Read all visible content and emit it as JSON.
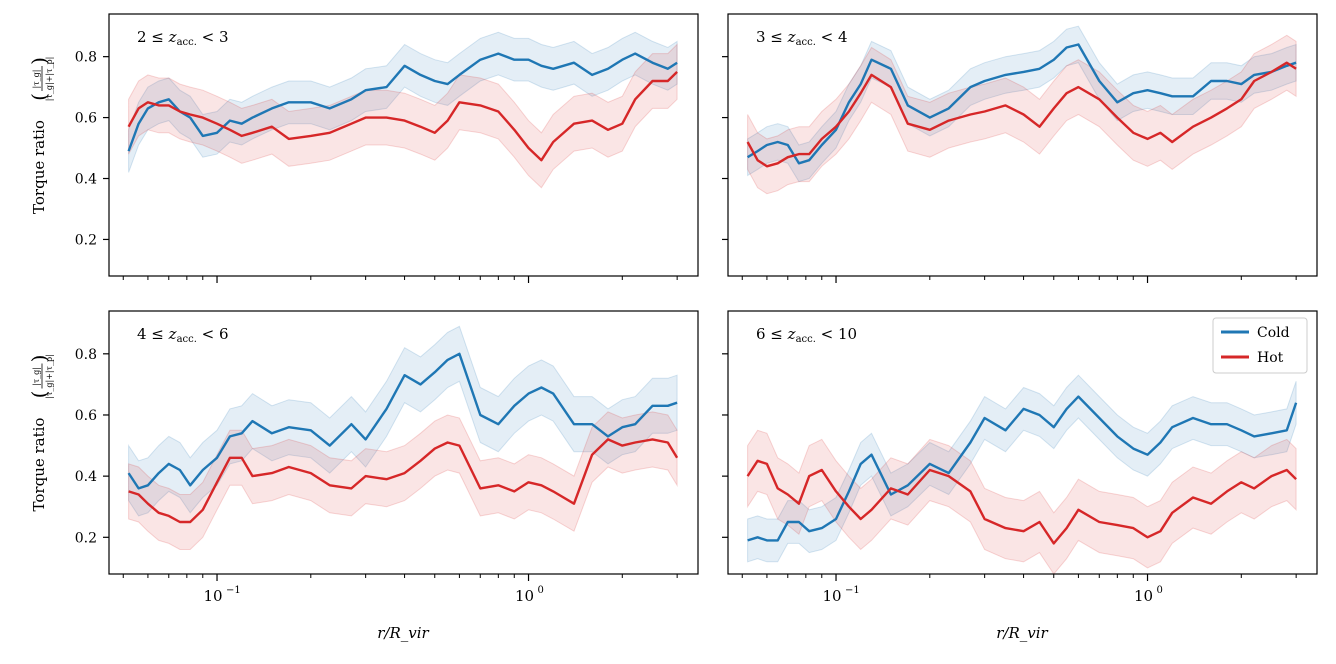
{
  "figure": {
    "xlabel": "r/R_vir",
    "ylabel_prefix": "Torque ratio",
    "ylabel_fraction_num": "|τ_g|",
    "ylabel_fraction_den": "|τ_g|+|τ_p|",
    "colors": {
      "cold": "#1f77b4",
      "hot": "#d62728"
    }
  },
  "legend": {
    "entries": [
      {
        "name": "Cold",
        "color": "#1f77b4"
      },
      {
        "name": "Hot",
        "color": "#d62728"
      }
    ],
    "placement": "upper-right of bottom-right panel"
  },
  "chart_data": [
    {
      "type": "line",
      "title": "2 ≤ z_acc. < 3",
      "label_main": "2 ≤ ",
      "label_z": "z",
      "label_sub": "acc.",
      "label_tail": " < 3",
      "xscale": "log",
      "xlim": [
        0.045,
        3.5
      ],
      "ylim": [
        0.08,
        0.94
      ],
      "yticks": [
        0.2,
        0.4,
        0.6,
        0.8
      ],
      "ytick_labels": [
        "0.2",
        "0.4",
        "0.6",
        "0.8"
      ],
      "x": [
        0.052,
        0.056,
        0.06,
        0.065,
        0.07,
        0.076,
        0.082,
        0.09,
        0.1,
        0.11,
        0.12,
        0.13,
        0.15,
        0.17,
        0.2,
        0.23,
        0.27,
        0.3,
        0.35,
        0.4,
        0.45,
        0.5,
        0.55,
        0.6,
        0.7,
        0.8,
        0.9,
        1.0,
        1.1,
        1.2,
        1.4,
        1.6,
        1.8,
        2.0,
        2.2,
        2.5,
        2.8,
        3.0
      ],
      "series": [
        {
          "name": "Cold",
          "values": [
            0.49,
            0.58,
            0.63,
            0.65,
            0.66,
            0.62,
            0.6,
            0.54,
            0.55,
            0.59,
            0.58,
            0.6,
            0.63,
            0.65,
            0.65,
            0.63,
            0.66,
            0.69,
            0.7,
            0.77,
            0.74,
            0.72,
            0.71,
            0.74,
            0.79,
            0.81,
            0.79,
            0.79,
            0.77,
            0.76,
            0.78,
            0.74,
            0.76,
            0.79,
            0.81,
            0.78,
            0.76,
            0.78
          ],
          "band": 0.07
        },
        {
          "name": "Hot",
          "values": [
            0.57,
            0.63,
            0.65,
            0.64,
            0.64,
            0.62,
            0.61,
            0.6,
            0.58,
            0.56,
            0.54,
            0.55,
            0.57,
            0.53,
            0.54,
            0.55,
            0.58,
            0.6,
            0.6,
            0.59,
            0.57,
            0.55,
            0.59,
            0.65,
            0.64,
            0.62,
            0.56,
            0.5,
            0.46,
            0.52,
            0.58,
            0.59,
            0.56,
            0.58,
            0.66,
            0.72,
            0.72,
            0.75
          ],
          "band": 0.09
        }
      ]
    },
    {
      "type": "line",
      "title": "3 ≤ z_acc. < 4",
      "label_main": "3 ≤ ",
      "label_z": "z",
      "label_sub": "acc.",
      "label_tail": " < 4",
      "xscale": "log",
      "xlim": [
        0.045,
        3.5
      ],
      "ylim": [
        0.08,
        0.94
      ],
      "yticks": [
        0.2,
        0.4,
        0.6,
        0.8
      ],
      "ytick_labels": [
        "",
        "",
        "",
        ""
      ],
      "x": [
        0.052,
        0.056,
        0.06,
        0.065,
        0.07,
        0.076,
        0.082,
        0.09,
        0.1,
        0.11,
        0.12,
        0.13,
        0.15,
        0.17,
        0.2,
        0.23,
        0.27,
        0.3,
        0.35,
        0.4,
        0.45,
        0.5,
        0.55,
        0.6,
        0.7,
        0.8,
        0.9,
        1.0,
        1.1,
        1.2,
        1.4,
        1.6,
        1.8,
        2.0,
        2.2,
        2.5,
        2.8,
        3.0
      ],
      "series": [
        {
          "name": "Cold",
          "values": [
            0.47,
            0.49,
            0.51,
            0.52,
            0.51,
            0.45,
            0.46,
            0.51,
            0.56,
            0.65,
            0.71,
            0.79,
            0.76,
            0.64,
            0.6,
            0.63,
            0.7,
            0.72,
            0.74,
            0.75,
            0.76,
            0.79,
            0.83,
            0.84,
            0.72,
            0.65,
            0.68,
            0.69,
            0.68,
            0.67,
            0.67,
            0.72,
            0.72,
            0.71,
            0.74,
            0.75,
            0.77,
            0.78
          ],
          "band": 0.06
        },
        {
          "name": "Hot",
          "values": [
            0.52,
            0.46,
            0.44,
            0.45,
            0.47,
            0.48,
            0.48,
            0.53,
            0.57,
            0.62,
            0.68,
            0.74,
            0.7,
            0.58,
            0.56,
            0.59,
            0.61,
            0.62,
            0.64,
            0.61,
            0.57,
            0.63,
            0.68,
            0.7,
            0.66,
            0.6,
            0.55,
            0.53,
            0.55,
            0.52,
            0.57,
            0.6,
            0.63,
            0.66,
            0.72,
            0.75,
            0.78,
            0.76
          ],
          "band": 0.09
        }
      ]
    },
    {
      "type": "line",
      "title": "4 ≤ z_acc. < 6",
      "label_main": "4 ≤ ",
      "label_z": "z",
      "label_sub": "acc.",
      "label_tail": " < 6",
      "xscale": "log",
      "xlim": [
        0.045,
        3.5
      ],
      "ylim": [
        0.08,
        0.94
      ],
      "yticks": [
        0.2,
        0.4,
        0.6,
        0.8
      ],
      "ytick_labels": [
        "0.2",
        "0.4",
        "0.6",
        "0.8"
      ],
      "xticks": [
        0.1,
        1.0
      ],
      "xtick_base": [
        "10",
        "10"
      ],
      "xtick_exp": [
        "−1",
        "0"
      ],
      "x": [
        0.052,
        0.056,
        0.06,
        0.065,
        0.07,
        0.076,
        0.082,
        0.09,
        0.1,
        0.11,
        0.12,
        0.13,
        0.15,
        0.17,
        0.2,
        0.23,
        0.27,
        0.3,
        0.35,
        0.4,
        0.45,
        0.5,
        0.55,
        0.6,
        0.7,
        0.8,
        0.9,
        1.0,
        1.1,
        1.2,
        1.4,
        1.6,
        1.8,
        2.0,
        2.2,
        2.5,
        2.8,
        3.0
      ],
      "series": [
        {
          "name": "Cold",
          "values": [
            0.41,
            0.36,
            0.37,
            0.41,
            0.44,
            0.42,
            0.37,
            0.42,
            0.46,
            0.53,
            0.54,
            0.58,
            0.54,
            0.56,
            0.55,
            0.5,
            0.57,
            0.52,
            0.62,
            0.73,
            0.7,
            0.74,
            0.78,
            0.8,
            0.6,
            0.57,
            0.63,
            0.67,
            0.69,
            0.67,
            0.57,
            0.57,
            0.53,
            0.56,
            0.57,
            0.63,
            0.63,
            0.64
          ],
          "band": 0.09
        },
        {
          "name": "Hot",
          "values": [
            0.35,
            0.34,
            0.31,
            0.28,
            0.27,
            0.25,
            0.25,
            0.29,
            0.38,
            0.46,
            0.46,
            0.4,
            0.41,
            0.43,
            0.41,
            0.37,
            0.36,
            0.4,
            0.39,
            0.41,
            0.45,
            0.49,
            0.51,
            0.5,
            0.36,
            0.37,
            0.35,
            0.38,
            0.37,
            0.35,
            0.31,
            0.47,
            0.52,
            0.5,
            0.51,
            0.52,
            0.51,
            0.46
          ],
          "band": 0.09
        }
      ]
    },
    {
      "type": "line",
      "title": "6 ≤ z_acc. < 10",
      "label_main": "6 ≤ ",
      "label_z": "z",
      "label_sub": "acc.",
      "label_tail": " < 10",
      "xscale": "log",
      "xlim": [
        0.045,
        3.5
      ],
      "ylim": [
        0.08,
        0.94
      ],
      "yticks": [
        0.2,
        0.4,
        0.6,
        0.8
      ],
      "ytick_labels": [
        "",
        "",
        "",
        ""
      ],
      "xticks": [
        0.1,
        1.0
      ],
      "xtick_base": [
        "10",
        "10"
      ],
      "xtick_exp": [
        "−1",
        "0"
      ],
      "x": [
        0.052,
        0.056,
        0.06,
        0.065,
        0.07,
        0.076,
        0.082,
        0.09,
        0.1,
        0.11,
        0.12,
        0.13,
        0.15,
        0.17,
        0.2,
        0.23,
        0.27,
        0.3,
        0.35,
        0.4,
        0.45,
        0.5,
        0.55,
        0.6,
        0.7,
        0.8,
        0.9,
        1.0,
        1.1,
        1.2,
        1.4,
        1.6,
        1.8,
        2.0,
        2.2,
        2.5,
        2.8,
        3.0
      ],
      "series": [
        {
          "name": "Cold",
          "values": [
            0.19,
            0.2,
            0.19,
            0.19,
            0.25,
            0.25,
            0.22,
            0.23,
            0.26,
            0.35,
            0.44,
            0.47,
            0.34,
            0.37,
            0.44,
            0.41,
            0.51,
            0.59,
            0.55,
            0.62,
            0.6,
            0.56,
            0.62,
            0.66,
            0.59,
            0.53,
            0.49,
            0.47,
            0.51,
            0.56,
            0.59,
            0.57,
            0.57,
            0.55,
            0.53,
            0.54,
            0.55,
            0.64
          ],
          "band": 0.07
        },
        {
          "name": "Hot",
          "values": [
            0.4,
            0.45,
            0.44,
            0.36,
            0.34,
            0.31,
            0.4,
            0.42,
            0.35,
            0.3,
            0.26,
            0.29,
            0.36,
            0.34,
            0.42,
            0.4,
            0.35,
            0.26,
            0.23,
            0.22,
            0.25,
            0.18,
            0.23,
            0.29,
            0.25,
            0.24,
            0.23,
            0.2,
            0.22,
            0.28,
            0.33,
            0.31,
            0.35,
            0.38,
            0.36,
            0.4,
            0.42,
            0.39
          ],
          "band": 0.1
        }
      ]
    }
  ]
}
